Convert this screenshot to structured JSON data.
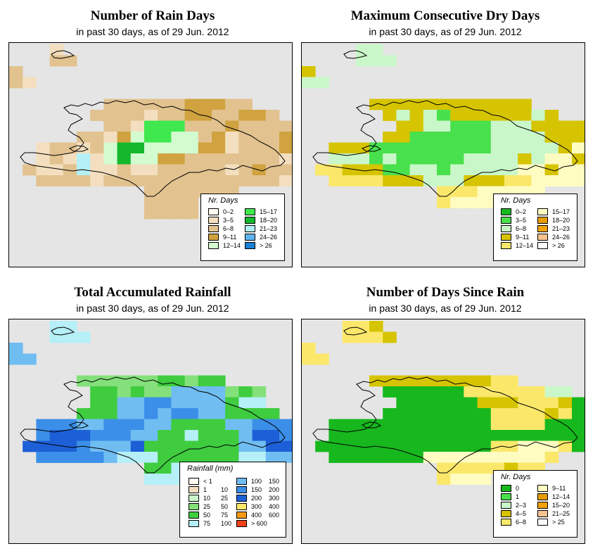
{
  "panels": [
    {
      "title": "Number of Rain Days",
      "subtitle": "in past 30 days, as of  29 Jun. 2012",
      "legend_title": "Nr. Days",
      "legend": [
        {
          "label": "0–2",
          "color": "#fffbf0"
        },
        {
          "label": "3–5",
          "color": "#f3dfbf"
        },
        {
          "label": "6–8",
          "color": "#e2c28f"
        },
        {
          "label": "9–11",
          "color": "#d0a340"
        },
        {
          "label": "12–14",
          "color": "#d3fbd0"
        },
        {
          "label": "15–17",
          "color": "#3fe84f"
        },
        {
          "label": "18–20",
          "color": "#14b82d"
        },
        {
          "label": "21–23",
          "color": "#b5eff7"
        },
        {
          "label": "24–26",
          "color": "#5fb4f0"
        },
        {
          "label": "> 26",
          "color": "#1a7fd5"
        }
      ]
    },
    {
      "title": "Maximum Consecutive Dry Days",
      "subtitle": "in past 30 days, as of  29 Jun. 2012",
      "legend_title": "Nr. Days",
      "legend": [
        {
          "label": "0–2",
          "color": "#17b81e"
        },
        {
          "label": "3–5",
          "color": "#49e04d"
        },
        {
          "label": "6–8",
          "color": "#c9f7c9"
        },
        {
          "label": "9–11",
          "color": "#d6c400"
        },
        {
          "label": "12–14",
          "color": "#fbe86a"
        },
        {
          "label": "15–17",
          "color": "#fffcc2"
        },
        {
          "label": "18–20",
          "color": "#e89b00"
        },
        {
          "label": "21–23",
          "color": "#f2a20d"
        },
        {
          "label": "24–26",
          "color": "#f7c28f"
        },
        {
          "label": "> 26",
          "color": "#ffffff"
        }
      ]
    },
    {
      "title": "Total Accumulated Rainfall",
      "subtitle": "in past 30 days, as of  29 Jun. 2012",
      "legend_title": "Rainfall (mm)",
      "legend": [
        {
          "label": "< 1",
          "label2": "",
          "color": "#fffbf0"
        },
        {
          "label": "1",
          "label2": "10",
          "color": "#f3dfbf"
        },
        {
          "label": "10",
          "label2": "25",
          "color": "#c9f7c9"
        },
        {
          "label": "25",
          "label2": "50",
          "color": "#84e07a"
        },
        {
          "label": "50",
          "label2": "75",
          "color": "#3fcc3f"
        },
        {
          "label": "75",
          "label2": "100",
          "color": "#b5eff7"
        },
        {
          "label": "100",
          "label2": "150",
          "color": "#70bdf2"
        },
        {
          "label": "150",
          "label2": "200",
          "color": "#3b8fe8"
        },
        {
          "label": "200",
          "label2": "300",
          "color": "#1d5fd6"
        },
        {
          "label": "300",
          "label2": "400",
          "color": "#fbe86a"
        },
        {
          "label": "400",
          "label2": "600",
          "color": "#f79a17"
        },
        {
          "label": "> 600",
          "label2": "",
          "color": "#f0411b"
        }
      ]
    },
    {
      "title": "Number of Days Since Rain",
      "subtitle": "in past 30 days, as of  29 Jun. 2012",
      "legend_title": "Nr. Days",
      "legend": [
        {
          "label": "0",
          "color": "#17b81e"
        },
        {
          "label": "1",
          "color": "#49e04d"
        },
        {
          "label": "2–3",
          "color": "#c9f7c9"
        },
        {
          "label": "4–5",
          "color": "#d6c400"
        },
        {
          "label": "6–8",
          "color": "#fbe86a"
        },
        {
          "label": "9–11",
          "color": "#fffcc2"
        },
        {
          "label": "12–14",
          "color": "#e89b00"
        },
        {
          "label": "15–20",
          "color": "#f2a20d"
        },
        {
          "label": "21–25",
          "color": "#f7c28f"
        },
        {
          "label": "> 25",
          "color": "#ffffff"
        }
      ]
    }
  ]
}
